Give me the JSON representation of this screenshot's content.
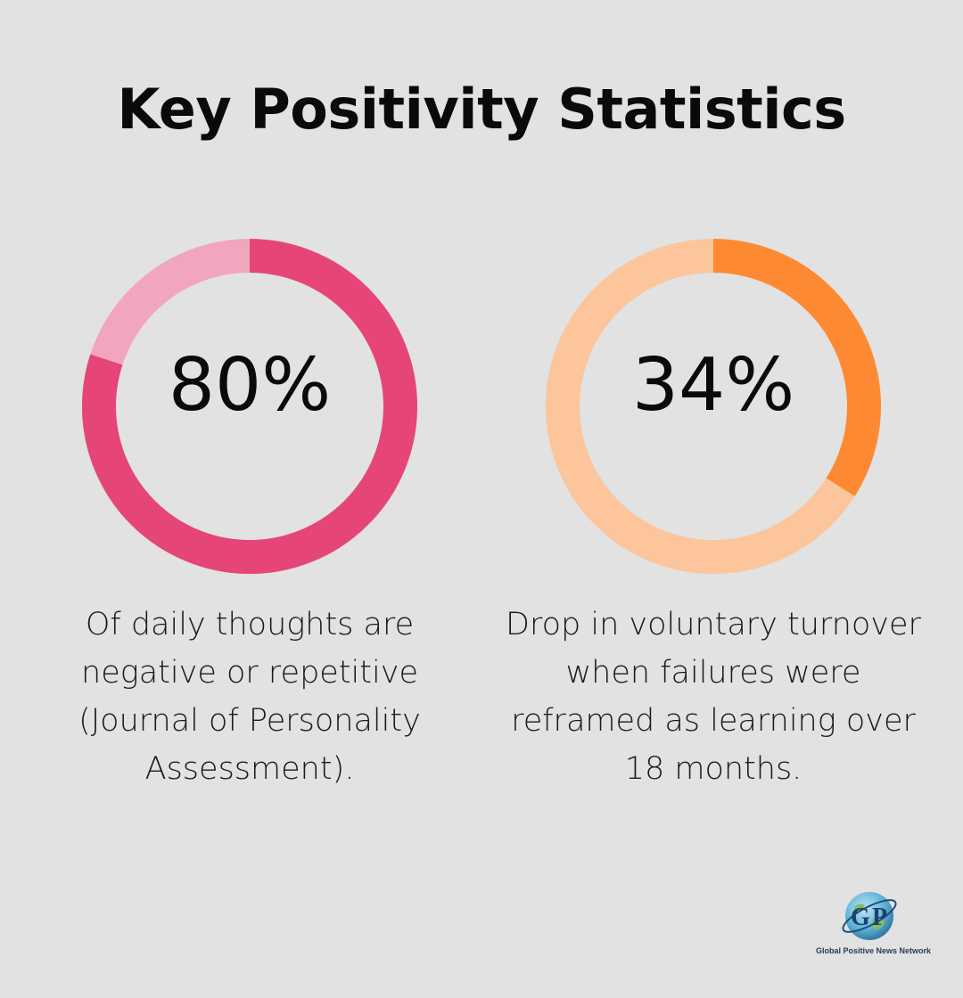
{
  "title": "Key Positivity Statistics",
  "chart_data": [
    {
      "type": "pie",
      "value": 80,
      "value_label": "80%",
      "caption_lines": [
        "Of daily thoughts are",
        "negative or repetitive",
        "(Journal of Personality",
        "Assessment)."
      ],
      "colors": {
        "filled": "#e54677",
        "track": "#f2a6be"
      }
    },
    {
      "type": "pie",
      "value": 34,
      "value_label": "34%",
      "caption_lines": [
        "Drop in voluntary turnover",
        "when failures were",
        "reframed as learning over",
        "18 months."
      ],
      "colors": {
        "filled": "#fd8a33",
        "track": "#fcc59b"
      }
    }
  ],
  "logo": {
    "mark_letters": [
      "G",
      "P"
    ],
    "name": "Global Positive News Network"
  }
}
